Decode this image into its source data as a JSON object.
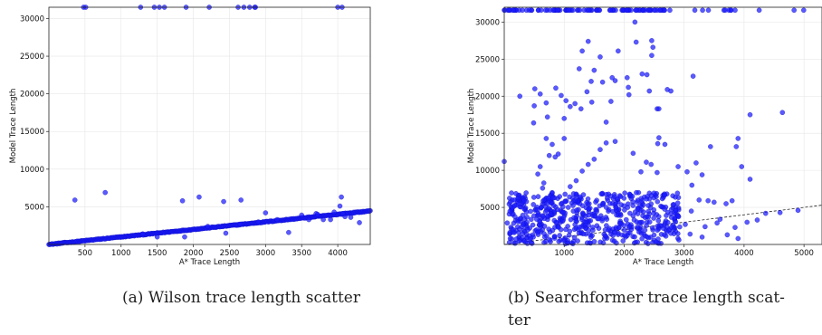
{
  "captions": {
    "a": "(a) Wilson trace length scatter",
    "b_line1": "(b) Searchformer trace length scat-",
    "b_line2": "ter"
  },
  "colors": {
    "point": "#1a1aff",
    "point_stroke": "#0b0bbf",
    "grid": "#e6e6e6",
    "axis": "#222222",
    "trend": "#222222"
  },
  "chart_data": [
    {
      "type": "scatter",
      "xlabel": "A* Trace Length",
      "ylabel": "Model Trace Length",
      "xlim": [
        0,
        4450
      ],
      "ylim": [
        0,
        31500
      ],
      "xticks": [
        500,
        1000,
        1500,
        2000,
        2500,
        3000,
        3500,
        4000
      ],
      "yticks": [
        5000,
        10000,
        15000,
        20000,
        25000,
        30000
      ],
      "grid": true,
      "trend_line": {
        "show": true,
        "style": "solid",
        "from": [
          0,
          0
        ],
        "to": [
          4450,
          4450
        ]
      },
      "dense_diagonal": {
        "x_from": 0,
        "x_to": 4450,
        "count": 400,
        "jitter": 60
      },
      "points": [
        [
          360,
          5900
        ],
        [
          780,
          6900
        ],
        [
          1850,
          5800
        ],
        [
          2080,
          6300
        ],
        [
          2420,
          5700
        ],
        [
          2660,
          5900
        ],
        [
          1300,
          1400
        ],
        [
          1500,
          1000
        ],
        [
          1880,
          1000
        ],
        [
          2450,
          1500
        ],
        [
          2900,
          3000
        ],
        [
          3000,
          4200
        ],
        [
          3160,
          3300
        ],
        [
          3320,
          1600
        ],
        [
          3500,
          3900
        ],
        [
          3600,
          3300
        ],
        [
          3700,
          4100
        ],
        [
          3800,
          3300
        ],
        [
          3900,
          3300
        ],
        [
          3950,
          4300
        ],
        [
          4050,
          6300
        ],
        [
          4030,
          5100
        ],
        [
          4070,
          4100
        ],
        [
          4180,
          3600
        ],
        [
          4300,
          2900
        ],
        [
          4100,
          3700
        ],
        [
          3720,
          4000
        ],
        [
          2650,
          2700
        ],
        [
          2200,
          2400
        ],
        [
          480,
          31500
        ],
        [
          510,
          31500
        ],
        [
          1270,
          31500
        ],
        [
          1460,
          31500
        ],
        [
          1530,
          31500
        ],
        [
          1600,
          31500
        ],
        [
          1900,
          31500
        ],
        [
          2220,
          31500
        ],
        [
          2620,
          31500
        ],
        [
          2700,
          31500
        ],
        [
          2780,
          31500
        ],
        [
          2850,
          31500
        ],
        [
          2860,
          31500
        ],
        [
          4000,
          31500
        ],
        [
          4060,
          31500
        ]
      ]
    },
    {
      "type": "scatter",
      "xlabel": "A* Trace Length",
      "ylabel": "Model Trace Length",
      "xlim": [
        0,
        5300
      ],
      "ylim": [
        0,
        32000
      ],
      "xticks": [
        1000,
        2000,
        3000,
        4000,
        5000
      ],
      "yticks": [
        5000,
        10000,
        15000,
        20000,
        25000,
        30000
      ],
      "grid": true,
      "trend_line": {
        "show": true,
        "style": "dashed",
        "from": [
          0,
          0
        ],
        "to": [
          5300,
          5300
        ]
      },
      "dense_cluster": {
        "x_from": 80,
        "x_to": 2950,
        "y_from": 100,
        "y_to": 7000,
        "count": 600
      },
      "top_row": {
        "y": 31600,
        "x_from": 0,
        "x_to": 5000,
        "count": 110
      },
      "points": [
        [
          0,
          11200
        ],
        [
          100,
          5700
        ],
        [
          170,
          6000
        ],
        [
          330,
          5900
        ],
        [
          50,
          2900
        ],
        [
          150,
          2000
        ],
        [
          100,
          800
        ],
        [
          260,
          20000
        ],
        [
          500,
          18700
        ],
        [
          510,
          21000
        ],
        [
          490,
          16400
        ],
        [
          600,
          20300
        ],
        [
          700,
          19100
        ],
        [
          720,
          17200
        ],
        [
          860,
          21100
        ],
        [
          950,
          20100
        ],
        [
          1000,
          17000
        ],
        [
          1030,
          19400
        ],
        [
          1100,
          18600
        ],
        [
          1180,
          19000
        ],
        [
          1280,
          18300
        ],
        [
          1380,
          20600
        ],
        [
          1460,
          19200
        ],
        [
          1500,
          23500
        ],
        [
          1450,
          22000
        ],
        [
          1600,
          25300
        ],
        [
          1640,
          21900
        ],
        [
          1300,
          26100
        ],
        [
          1250,
          23700
        ],
        [
          1400,
          27400
        ],
        [
          1780,
          19300
        ],
        [
          1700,
          16500
        ],
        [
          1800,
          22500
        ],
        [
          1850,
          22100
        ],
        [
          1900,
          26100
        ],
        [
          2050,
          22500
        ],
        [
          2070,
          21200
        ],
        [
          2080,
          20200
        ],
        [
          2180,
          30000
        ],
        [
          2200,
          27300
        ],
        [
          2300,
          23000
        ],
        [
          2460,
          27500
        ],
        [
          2480,
          26600
        ],
        [
          2460,
          25500
        ],
        [
          2380,
          22900
        ],
        [
          2420,
          20700
        ],
        [
          2550,
          18300
        ],
        [
          2580,
          18300
        ],
        [
          2720,
          20900
        ],
        [
          2780,
          20700
        ],
        [
          2580,
          14400
        ],
        [
          2560,
          13600
        ],
        [
          2450,
          10800
        ],
        [
          2370,
          11100
        ],
        [
          2280,
          9800
        ],
        [
          2550,
          9700
        ],
        [
          2680,
          13500
        ],
        [
          2900,
          10500
        ],
        [
          3050,
          9800
        ],
        [
          3130,
          8000
        ],
        [
          3200,
          11000
        ],
        [
          3300,
          9400
        ],
        [
          3440,
          13200
        ],
        [
          3150,
          22700
        ],
        [
          3900,
          14300
        ],
        [
          3870,
          13200
        ],
        [
          3960,
          10500
        ],
        [
          4100,
          17500
        ],
        [
          4100,
          8800
        ],
        [
          4640,
          17800
        ],
        [
          4900,
          4600
        ],
        [
          4600,
          4300
        ],
        [
          4360,
          4200
        ],
        [
          4220,
          3300
        ],
        [
          4050,
          3000
        ],
        [
          3850,
          2300
        ],
        [
          3800,
          5900
        ],
        [
          3700,
          5500
        ],
        [
          3500,
          5700
        ],
        [
          3400,
          5900
        ],
        [
          3250,
          6000
        ],
        [
          3120,
          4500
        ],
        [
          3020,
          2700
        ],
        [
          3600,
          3400
        ],
        [
          3550,
          2900
        ],
        [
          3350,
          2400
        ],
        [
          3900,
          800
        ],
        [
          3720,
          1300
        ],
        [
          3300,
          1000
        ],
        [
          3100,
          1400
        ],
        [
          2150,
          12300
        ],
        [
          1850,
          13900
        ],
        [
          1700,
          13700
        ],
        [
          1600,
          12800
        ],
        [
          1500,
          11500
        ],
        [
          1400,
          10800
        ],
        [
          1300,
          9900
        ],
        [
          1200,
          8600
        ],
        [
          1100,
          7800
        ],
        [
          900,
          12200
        ],
        [
          850,
          11800
        ],
        [
          800,
          13500
        ],
        [
          750,
          12000
        ],
        [
          700,
          14300
        ],
        [
          660,
          8300
        ],
        [
          640,
          7600
        ],
        [
          600,
          10500
        ],
        [
          560,
          9500
        ],
        [
          1000,
          14300
        ]
      ]
    }
  ]
}
